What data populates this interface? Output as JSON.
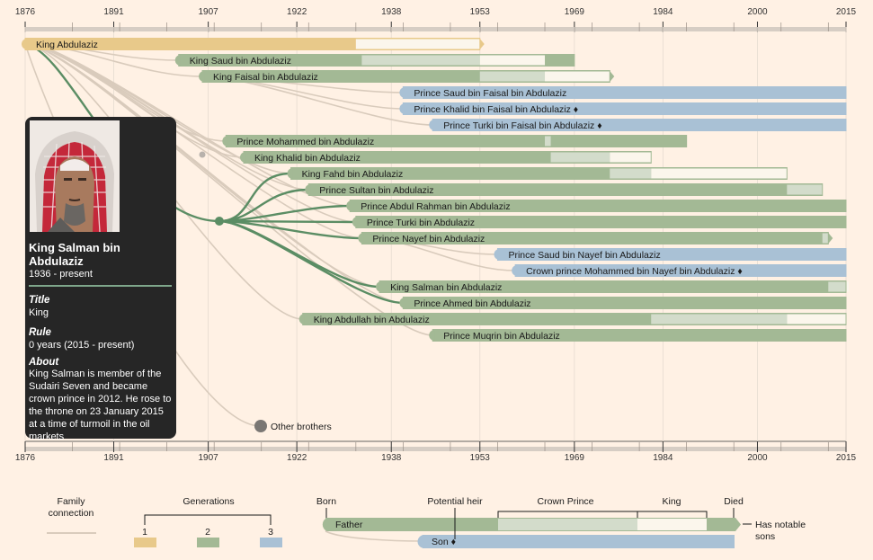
{
  "axis": {
    "ticks": [
      "1876",
      "1891",
      "1907",
      "1922",
      "1938",
      "1953",
      "1969",
      "1984",
      "2000",
      "2015"
    ]
  },
  "colors": {
    "gen1": "#e8c98a",
    "gen2": "#a3b995",
    "gen3": "#a9c1d5",
    "crown": "#d3dccb",
    "king": "#fbf6ec",
    "link": "#d9cbbc",
    "link_active": "#5b8d64",
    "card": "#262626",
    "bg": "#fff1e4"
  },
  "profile": {
    "name": "King Salman bin Abdulaziz",
    "years": "1936 - present",
    "title_heading": "Title",
    "title_value": "King",
    "rule_heading": "Rule",
    "rule_value": "0 years (2015 - present)",
    "about_heading": "About",
    "about_text": "King Salman is member of the Sudairi Seven and became crown prince in 2012. He rose to the throne on 23 January 2015 at a time of turmoil in the oil markets"
  },
  "other_brothers": "Other brothers",
  "people": [
    {
      "name": "King Abdulaziz",
      "gen": 1,
      "born": 1876,
      "died": 1953,
      "king_from": 1932,
      "king_to": 1953,
      "has_sons": true
    },
    {
      "name": "King Saud bin Abdulaziz",
      "gen": 2,
      "born": 1902,
      "died": 1969,
      "crown_from": 1933,
      "crown_to": 1953,
      "king_from": 1953,
      "king_to": 1964
    },
    {
      "name": "King Faisal bin Abdulaziz",
      "gen": 2,
      "born": 1906,
      "died": 1975,
      "crown_from": 1953,
      "crown_to": 1964,
      "king_from": 1964,
      "king_to": 1975,
      "has_sons": true
    },
    {
      "name": "Prince Saud bin Faisal bin Abdulaziz",
      "gen": 3,
      "born": 1940,
      "died": null
    },
    {
      "name": "Prince Khalid bin Faisal bin Abdulaziz ♦",
      "gen": 3,
      "born": 1940,
      "died": null
    },
    {
      "name": "Prince Turki bin Faisal bin Abdulaziz ♦",
      "gen": 3,
      "born": 1945,
      "died": null
    },
    {
      "name": "Prince Mohammed bin Abdulaziz",
      "gen": 2,
      "born": 1910,
      "died": 1988,
      "crown_from": 1964,
      "crown_to": 1965
    },
    {
      "name": "King Khalid bin Abdulaziz",
      "gen": 2,
      "born": 1913,
      "died": 1982,
      "crown_from": 1965,
      "crown_to": 1975,
      "king_from": 1975,
      "king_to": 1982
    },
    {
      "name": "King Fahd bin Abdulaziz",
      "gen": 2,
      "born": 1921,
      "died": 2005,
      "crown_from": 1975,
      "crown_to": 1982,
      "king_from": 1982,
      "king_to": 2005
    },
    {
      "name": "Prince Sultan bin Abdulaziz",
      "gen": 2,
      "born": 1924,
      "died": 2011,
      "crown_from": 2005,
      "crown_to": 2011
    },
    {
      "name": "Prince Abdul Rahman bin Abdulaziz",
      "gen": 2,
      "born": 1931,
      "died": null
    },
    {
      "name": "Prince Turki bin Abdulaziz",
      "gen": 2,
      "born": 1932,
      "died": null
    },
    {
      "name": "Prince Nayef bin Abdulaziz",
      "gen": 2,
      "born": 1933,
      "died": 2012,
      "crown_from": 2011,
      "crown_to": 2012,
      "has_sons": true
    },
    {
      "name": "Prince Saud bin Nayef bin Abdulaziz",
      "gen": 3,
      "born": 1956,
      "died": null
    },
    {
      "name": "Crown prince Mohammed bin Nayef bin Abdulaziz ♦",
      "gen": 3,
      "born": 1959,
      "died": null
    },
    {
      "name": "King Salman bin Abdulaziz",
      "gen": 2,
      "born": 1936,
      "died": null,
      "crown_from": 2012,
      "crown_to": 2015,
      "king_from": 2015,
      "king_to": 2015
    },
    {
      "name": "Prince Ahmed bin Abdulaziz",
      "gen": 2,
      "born": 1940,
      "died": null
    },
    {
      "name": "King Abdullah bin Abdulaziz",
      "gen": 2,
      "born": 1923,
      "died": 2015,
      "crown_from": 1982,
      "crown_to": 2005,
      "king_from": 2005,
      "king_to": 2015
    },
    {
      "name": "Prince Muqrin bin Abdulaziz",
      "gen": 2,
      "born": 1945,
      "died": null
    }
  ],
  "legend": {
    "family_connection": "Family connection",
    "generations": "Generations",
    "gen_labels": [
      "1",
      "2",
      "3"
    ],
    "born": "Born",
    "potential_heir": "Potential heir",
    "crown_prince": "Crown Prince",
    "king": "King",
    "died": "Died",
    "has_notable_sons": "Has notable sons",
    "father": "Father",
    "son": "Son ♦"
  }
}
